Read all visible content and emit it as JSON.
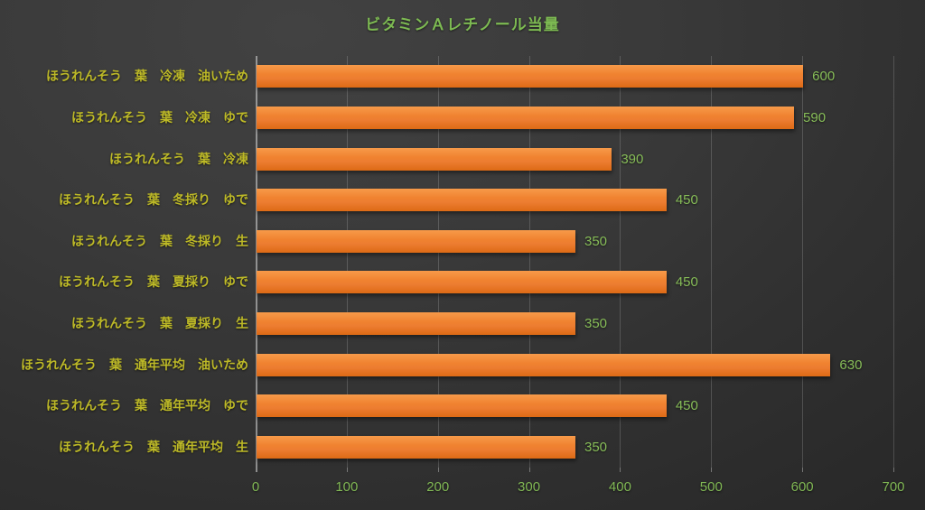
{
  "chart_data": {
    "type": "bar",
    "orientation": "horizontal",
    "title": "ビタミンＡレチノール当量",
    "categories": [
      "ほうれんそう　葉　冷凍　油いため",
      "ほうれんそう　葉　冷凍　ゆで",
      "ほうれんそう　葉　冷凍",
      "ほうれんそう　葉　冬採り　ゆで",
      "ほうれんそう　葉　冬採り　生",
      "ほうれんそう　葉　夏採り　ゆで",
      "ほうれんそう　葉　夏採り　生",
      "ほうれんそう　葉　通年平均　油いため",
      "ほうれんそう　葉　通年平均　ゆで",
      "ほうれんそう　葉　通年平均　生"
    ],
    "values": [
      600,
      590,
      390,
      450,
      350,
      450,
      350,
      630,
      450,
      350
    ],
    "data_labels": [
      "600",
      "590",
      "390",
      "450",
      "350",
      "450",
      "350",
      "630",
      "450",
      "350"
    ],
    "xlabel": "",
    "ylabel": "",
    "xlim": [
      0,
      700
    ],
    "x_ticks": [
      "0",
      "100",
      "200",
      "300",
      "400",
      "500",
      "600",
      "700"
    ],
    "grid": true,
    "legend": false,
    "colors": {
      "bar": "#ED7D31",
      "bar_gradient_top": "#F79A49",
      "bar_gradient_bottom": "#DD6A15",
      "title_text": "#7DBA52",
      "value_text": "#87BD58",
      "axis_tick_text": "#80B754",
      "category_text": "#BDB927",
      "background_light": "#424242",
      "background_dark": "#262626"
    }
  }
}
